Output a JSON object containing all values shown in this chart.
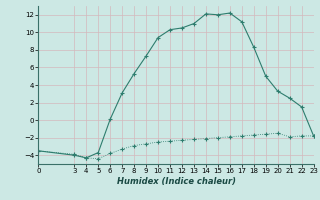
{
  "title": "",
  "xlabel": "Humidex (Indice chaleur)",
  "background_color": "#cce8e4",
  "grid_color": "#b8d8d4",
  "line_color": "#2e7d6e",
  "xlim": [
    0,
    23
  ],
  "ylim": [
    -5,
    13
  ],
  "yticks": [
    -4,
    -2,
    0,
    2,
    4,
    6,
    8,
    10,
    12
  ],
  "xticks": [
    0,
    3,
    4,
    5,
    6,
    7,
    8,
    9,
    10,
    11,
    12,
    13,
    14,
    15,
    16,
    17,
    18,
    19,
    20,
    21,
    22,
    23
  ],
  "upper_line_x": [
    0,
    3,
    4,
    5,
    6,
    7,
    8,
    9,
    10,
    11,
    12,
    13,
    14,
    15,
    16,
    17,
    18,
    19,
    20,
    21,
    22,
    23
  ],
  "upper_line_y": [
    -3.5,
    -4.0,
    -4.3,
    -3.7,
    0.1,
    3.1,
    5.3,
    7.3,
    9.4,
    10.3,
    10.5,
    11.0,
    12.1,
    12.0,
    12.2,
    11.2,
    8.3,
    5.0,
    3.3,
    2.5,
    1.5,
    -1.8
  ],
  "lower_line_x": [
    0,
    3,
    4,
    5,
    6,
    7,
    8,
    9,
    10,
    11,
    12,
    13,
    14,
    15,
    16,
    17,
    18,
    19,
    20,
    21,
    22,
    23
  ],
  "lower_line_y": [
    -3.5,
    -3.9,
    -4.3,
    -4.4,
    -3.8,
    -3.3,
    -2.9,
    -2.7,
    -2.5,
    -2.4,
    -2.3,
    -2.2,
    -2.1,
    -2.0,
    -1.9,
    -1.8,
    -1.7,
    -1.6,
    -1.5,
    -1.9,
    -1.8,
    -1.8
  ]
}
